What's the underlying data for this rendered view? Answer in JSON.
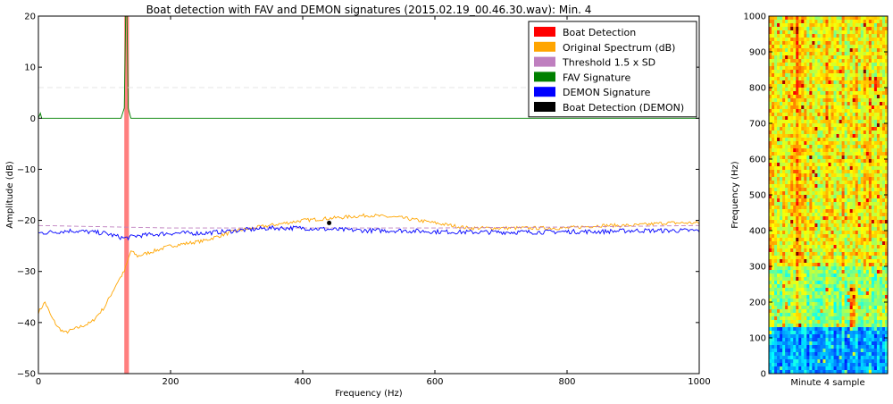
{
  "colors": {
    "boat_detection": "#ff0000",
    "original_spectrum": "#ffa500",
    "threshold": "#bf7fbf",
    "fav_signature": "#008000",
    "demon_signature": "#0000ff",
    "boat_detection_demon": "#000000"
  },
  "chart_data": [
    {
      "type": "line",
      "title": "Boat detection with FAV and DEMON signatures (2015.02.19_00.46.30.wav): Min. 4",
      "xlabel": "Frequency (Hz)",
      "ylabel": "Amplitude (dB)",
      "xlim": [
        0,
        1000
      ],
      "ylim": [
        -50,
        20
      ],
      "x_ticks": [
        0,
        200,
        400,
        600,
        800,
        1000
      ],
      "y_ticks": [
        -50,
        -40,
        -30,
        -20,
        -10,
        0,
        10,
        20
      ],
      "grid": false,
      "legend_position": "top-right",
      "legend": [
        {
          "label": "Boat Detection",
          "color": "#ff0000"
        },
        {
          "label": "Original Spectrum (dB)",
          "color": "#ffa500"
        },
        {
          "label": "Threshold 1.5 x SD",
          "color": "#bf7fbf"
        },
        {
          "label": "FAV Signature",
          "color": "#008000"
        },
        {
          "label": "DEMON Signature",
          "color": "#0000ff"
        },
        {
          "label": "Boat Detection (DEMON)",
          "color": "#000000"
        }
      ],
      "series": [
        {
          "name": "Original Spectrum (dB)",
          "style": "line",
          "color": "#ffa500",
          "x": [
            0,
            10,
            20,
            30,
            40,
            60,
            80,
            100,
            120,
            130,
            140,
            150,
            200,
            250,
            300,
            350,
            400,
            450,
            500,
            550,
            600,
            650,
            700,
            750,
            800,
            850,
            900,
            950,
            1000
          ],
          "y": [
            -38,
            -36,
            -39,
            -41,
            -42,
            -41,
            -40,
            -37,
            -32,
            -30,
            -26,
            -27,
            -25,
            -24,
            -22,
            -21,
            -20,
            -19.5,
            -19,
            -19.5,
            -20.5,
            -21.5,
            -21.5,
            -21.5,
            -21.5,
            -21,
            -21,
            -20.5,
            -20.5
          ]
        },
        {
          "name": "Threshold 1.5 x SD",
          "style": "dashed",
          "color": "#bf7fbf",
          "x": [
            0,
            200,
            400,
            600,
            800,
            1000
          ],
          "y": [
            -21,
            -21.5,
            -21.5,
            -21.5,
            -21.3,
            -21
          ]
        },
        {
          "name": "DEMON Signature",
          "style": "line",
          "color": "#0000ff",
          "x": [
            0,
            50,
            100,
            130,
            150,
            200,
            250,
            300,
            350,
            400,
            450,
            500,
            550,
            600,
            650,
            700,
            750,
            800,
            850,
            900,
            950,
            1000
          ],
          "y": [
            -22.5,
            -22,
            -22.5,
            -23.5,
            -23,
            -22.5,
            -22.5,
            -22,
            -21.5,
            -21.5,
            -21.8,
            -22,
            -22,
            -22.2,
            -22.3,
            -22.3,
            -22.3,
            -22.2,
            -22.2,
            -22,
            -22,
            -22
          ]
        },
        {
          "name": "FAV Signature",
          "style": "line",
          "color": "#008000",
          "x": [
            0,
            3,
            5,
            8,
            125,
            130,
            132,
            134,
            136,
            140,
            1000
          ],
          "y": [
            0,
            1,
            0,
            0,
            0,
            2,
            20,
            20,
            2,
            0,
            0
          ]
        },
        {
          "name": "Threshold 1.5 x SD",
          "style": "dashed-light",
          "color": "#dddddd",
          "x": [
            0,
            1000
          ],
          "y": [
            6,
            6
          ]
        }
      ],
      "detections": [
        {
          "name": "Boat Detection",
          "x_start": 130,
          "x_end": 137
        }
      ],
      "demon_points": [
        {
          "name": "Boat Detection (DEMON)",
          "x": 440,
          "y": -20.5
        }
      ]
    },
    {
      "type": "heatmap",
      "xlabel": "Minute 4 sample",
      "ylabel": "Frequency (Hz)",
      "ylim": [
        0,
        1000
      ],
      "y_ticks": [
        0,
        100,
        200,
        300,
        400,
        500,
        600,
        700,
        800,
        900,
        1000
      ],
      "colormap": "jet"
    }
  ]
}
